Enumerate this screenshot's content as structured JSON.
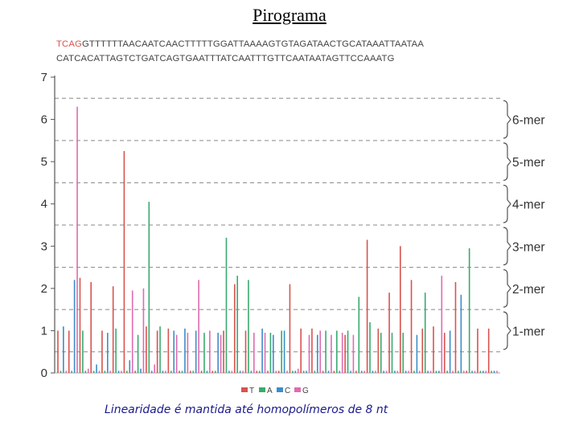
{
  "title": "Pirograma",
  "sequence": {
    "prefix": "TCAG",
    "line1_rest": "GTTTTTTAACAATCAACTTTTTGGATTAAAAGTGTAGATAACTGCATAAATTAATAA",
    "line2": "CATCACATTAGTCTGATCAGTGAATTTATCAATTTGTTCAATAATAGTTCCAAATG"
  },
  "caption": "Linearidade é mantida até homopolímeros de 8 nt",
  "colors": {
    "T": "#d9534f",
    "A": "#3aaa6e",
    "C": "#3c8dc9",
    "G": "#e06bb0",
    "axis": "#555555",
    "dash": "#888888"
  },
  "chart_data": {
    "type": "bar",
    "ylim": [
      0,
      7
    ],
    "yticks": [
      "0",
      "1",
      "2",
      "3",
      "4",
      "5",
      "6",
      "7"
    ],
    "grid": "dashed horizontal lines at 0.5, 1.5, 2.5, 3.5, 4.5, 5.5, 6.5",
    "legend": {
      "placement": "bottom-center",
      "entries": [
        "T",
        "A",
        "C",
        "G"
      ]
    },
    "brackets": [
      "1-mer",
      "2-mer",
      "3-mer",
      "4-mer",
      "5-mer",
      "6-mer"
    ],
    "flow_order": [
      "T",
      "A",
      "C",
      "G"
    ],
    "values": [
      1.0,
      0.05,
      1.1,
      0.05,
      1.0,
      0.05,
      2.2,
      6.3,
      2.25,
      1.0,
      0.05,
      0.1,
      2.15,
      0.05,
      0.2,
      0.05,
      1.0,
      0.05,
      0.95,
      0.05,
      2.05,
      1.05,
      0.05,
      0.05,
      5.25,
      0.05,
      0.3,
      1.95,
      0.05,
      0.9,
      0.1,
      2.0,
      1.1,
      4.05,
      0.05,
      0.2,
      1.0,
      1.1,
      0.05,
      0.05,
      1.05,
      0.05,
      1.0,
      0.9,
      0.05,
      0.05,
      1.05,
      0.95,
      0.05,
      0.05,
      1.0,
      2.2,
      0.05,
      0.95,
      0.05,
      1.0,
      0.05,
      0.05,
      0.95,
      0.9,
      1.0,
      3.2,
      0.05,
      0.05,
      2.1,
      2.3,
      0.05,
      0.05,
      1.0,
      2.2,
      0.05,
      0.95,
      0.05,
      0.05,
      1.05,
      0.95,
      0.05,
      0.95,
      0.9,
      0.05,
      0.05,
      1.0,
      1.0,
      0.05,
      2.1,
      0.05,
      0.05,
      0.1,
      1.05,
      0.05,
      0.05,
      0.9,
      1.05,
      0.05,
      0.9,
      1.0,
      0.05,
      1.0,
      0.05,
      0.9,
      0.05,
      1.0,
      0.05,
      0.95,
      0.9,
      1.0,
      0.05,
      0.9,
      0.05,
      1.8,
      0.05,
      0.05,
      3.15,
      1.2,
      0.05,
      0.05,
      1.05,
      0.95,
      0.05,
      0.05,
      1.9,
      0.95,
      0.05,
      0.05,
      3.0,
      0.95,
      0.05,
      0.05,
      2.2,
      0.05,
      0.9,
      0.05,
      1.05,
      1.9,
      0.05,
      0.05,
      1.1,
      0.05,
      0.05,
      2.3,
      0.95,
      0.05,
      1.0,
      0.05,
      2.15,
      0.05,
      1.85,
      0.05,
      0.05,
      2.95,
      0.05,
      0.05,
      1.05,
      0.05,
      0.05,
      0.05,
      1.05,
      0.05,
      0.05,
      0.05
    ]
  }
}
